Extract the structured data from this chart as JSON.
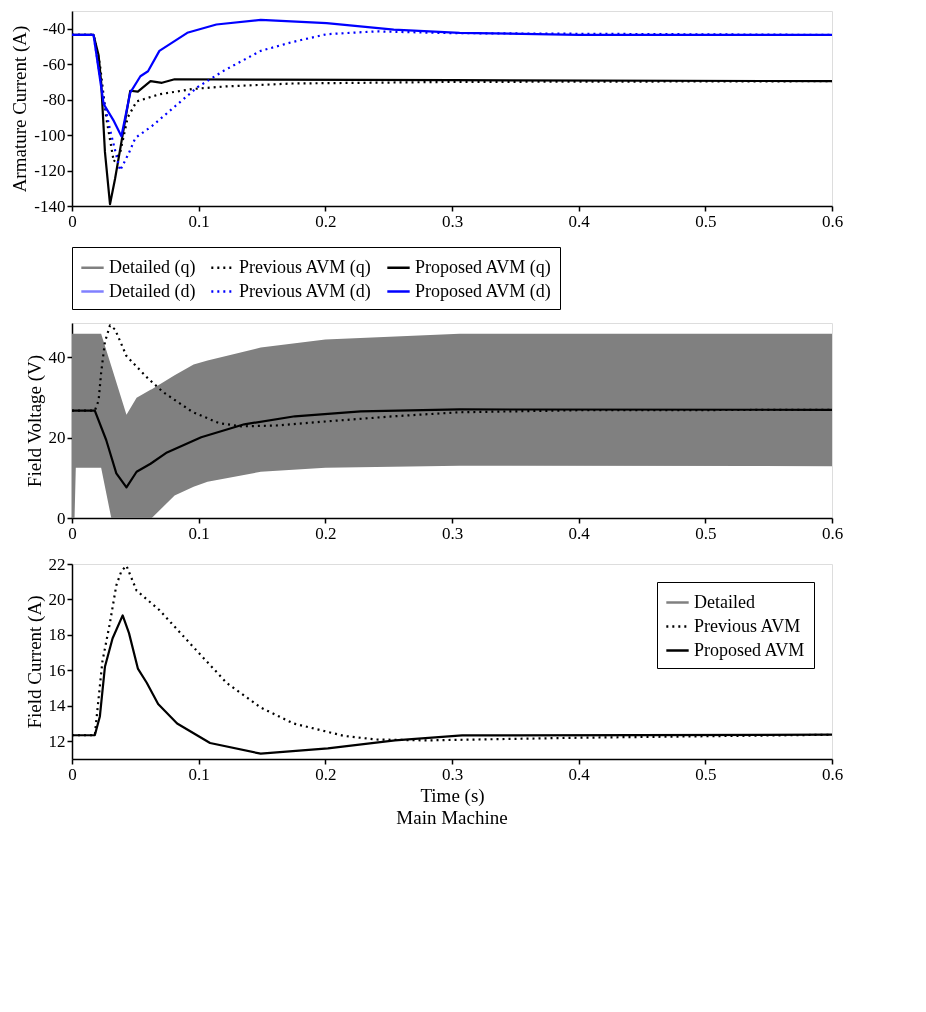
{
  "chart_data": [
    {
      "type": "line",
      "ylabel": "Armature Current (A)",
      "xlim": [
        0,
        0.6
      ],
      "ylim": [
        -140,
        -30
      ],
      "xticks": [
        0,
        0.1,
        0.2,
        0.3,
        0.4,
        0.5,
        0.6
      ],
      "yticks": [
        -140,
        -120,
        -100,
        -80,
        -60,
        -40
      ],
      "legend": "bottom",
      "grid": false,
      "series": [
        {
          "name": "Detailed (q)",
          "color": "#808080",
          "line_style": "solid"
        },
        {
          "name": "Previous AVM (q)",
          "color": "#000000",
          "line_style": "dotted",
          "x": [
            0,
            0.017,
            0.022,
            0.027,
            0.033,
            0.038,
            0.044,
            0.051,
            0.069,
            0.095,
            0.122,
            0.174,
            0.3,
            0.6
          ],
          "values": [
            -43.5,
            -43.5,
            -60,
            -90,
            -115,
            -110,
            -90,
            -81,
            -77,
            -74,
            -72.5,
            -70.9,
            -70,
            -69.6
          ]
        },
        {
          "name": "Proposed AVM (q)",
          "color": "#000000",
          "line_style": "solid",
          "x": [
            0,
            0.017,
            0.021,
            0.023,
            0.026,
            0.03,
            0.034,
            0.039,
            0.046,
            0.052,
            0.062,
            0.071,
            0.081,
            0.15,
            0.3,
            0.6
          ],
          "values": [
            -43.5,
            -43.5,
            -55,
            -70,
            -109.5,
            -139,
            -124.6,
            -104,
            -75,
            -75.5,
            -69.6,
            -70.5,
            -68.5,
            -68.7,
            -69,
            -69.6
          ]
        },
        {
          "name": "Detailed (d)",
          "color": "#8080ff",
          "line_style": "solid"
        },
        {
          "name": "Previous AVM (d)",
          "color": "#0000ff",
          "line_style": "dotted",
          "x": [
            0,
            0.017,
            0.025,
            0.03,
            0.038,
            0.045,
            0.05,
            0.063,
            0.081,
            0.099,
            0.12,
            0.149,
            0.174,
            0.201,
            0.24,
            0.3,
            0.6
          ],
          "values": [
            -43.5,
            -43.5,
            -80,
            -97,
            -120,
            -110,
            -101.6,
            -95,
            -84,
            -73,
            -63.6,
            -52.5,
            -47.5,
            -43.1,
            -41.5,
            -42.5,
            -43.5
          ]
        },
        {
          "name": "Proposed AVM (d)",
          "color": "#0000ff",
          "line_style": "solid",
          "x": [
            0,
            0.017,
            0.025,
            0.033,
            0.039,
            0.046,
            0.054,
            0.06,
            0.069,
            0.091,
            0.114,
            0.149,
            0.201,
            0.254,
            0.306,
            0.4,
            0.6
          ],
          "values": [
            -43.5,
            -43.5,
            -82.5,
            -92,
            -100.7,
            -76,
            -66.8,
            -64,
            -52.5,
            -42.3,
            -37.6,
            -35,
            -36.8,
            -40.5,
            -42.3,
            -43.5,
            -43.5
          ]
        }
      ]
    },
    {
      "type": "line",
      "ylabel": "Field Voltage (V)",
      "xlim": [
        0,
        0.6
      ],
      "ylim": [
        0,
        48.5
      ],
      "xticks": [
        0,
        0.1,
        0.2,
        0.3,
        0.4,
        0.5,
        0.6
      ],
      "yticks": [
        0,
        20,
        40
      ],
      "grid": false,
      "series": [
        {
          "type": "area",
          "color": "#808080",
          "x": [
            0,
            0.002,
            0.003,
            0.023,
            0.031,
            0.043,
            0.051,
            0.062,
            0.063,
            0.081,
            0.096,
            0.107,
            0.149,
            0.2,
            0.306,
            0.6
          ],
          "values": [
            null,
            null,
            null,
            null,
            null,
            null,
            null,
            null,
            null,
            null,
            null,
            null,
            null,
            null,
            null,
            null
          ],
          "upper": [
            45.8,
            45.8,
            45.8,
            45.8,
            37.8,
            25.7,
            29.9,
            31.9,
            32,
            35.5,
            38.2,
            39.2,
            42.4,
            44.4,
            45.8,
            45.8
          ],
          "lower": [
            0,
            0,
            12.5,
            12.5,
            0,
            0,
            0,
            0,
            0,
            5.6,
            7.8,
            9,
            11.5,
            12.5,
            13,
            12.9
          ]
        },
        {
          "color": "#000000",
          "line_style": "dotted",
          "x": [
            0,
            0.018,
            0.021,
            0.023,
            0.026,
            0.03,
            0.034,
            0.043,
            0.06,
            0.072,
            0.095,
            0.116,
            0.134,
            0.161,
            0.2,
            0.254,
            0.306,
            0.4,
            0.6
          ],
          "values": [
            26.7,
            26.7,
            29.2,
            36.1,
            43.8,
            47.9,
            46.9,
            40.3,
            34.7,
            31.3,
            26.4,
            23.6,
            22.8,
            23,
            24,
            25.3,
            26.3,
            26.8,
            26.9
          ]
        },
        {
          "color": "#000000",
          "line_style": "solid",
          "x": [
            0,
            0.018,
            0.027,
            0.035,
            0.043,
            0.051,
            0.062,
            0.075,
            0.102,
            0.136,
            0.176,
            0.228,
            0.306,
            0.6
          ],
          "values": [
            26.7,
            26.7,
            19.4,
            11.1,
            7.6,
            11.5,
            13.5,
            16.3,
            20.1,
            23.3,
            25.3,
            26.5,
            27,
            26.9
          ]
        }
      ]
    },
    {
      "type": "line",
      "xlabel": "Time (s)",
      "ylabel": "Field Current (A)",
      "xlim": [
        0,
        0.6
      ],
      "ylim": [
        11,
        22
      ],
      "xticks": [
        0,
        0.1,
        0.2,
        0.3,
        0.4,
        0.5,
        0.6
      ],
      "yticks": [
        12,
        14,
        16,
        18,
        20,
        22
      ],
      "legend": "top right",
      "grid": false,
      "annotations": [
        "Main Machine"
      ],
      "series": [
        {
          "name": "Detailed",
          "color": "#808080",
          "line_style": "solid"
        },
        {
          "name": "Previous AVM",
          "color": "#000000",
          "line_style": "dotted",
          "x": [
            0,
            0.018,
            0.024,
            0.03,
            0.035,
            0.039,
            0.043,
            0.051,
            0.069,
            0.096,
            0.122,
            0.149,
            0.175,
            0.215,
            0.24,
            0.28,
            0.4,
            0.6
          ],
          "values": [
            12.34,
            12.34,
            16.5,
            18.7,
            20.8,
            21.6,
            21.9,
            20.5,
            19.4,
            17.3,
            15.3,
            13.9,
            13,
            12.3,
            12.1,
            12.05,
            12.2,
            12.37
          ]
        },
        {
          "name": "Proposed AVM",
          "color": "#000000",
          "line_style": "solid",
          "x": [
            0,
            0.018,
            0.022,
            0.026,
            0.032,
            0.04,
            0.045,
            0.052,
            0.059,
            0.068,
            0.083,
            0.109,
            0.149,
            0.202,
            0.255,
            0.308,
            0.6
          ],
          "values": [
            12.34,
            12.34,
            13.4,
            16.2,
            17.8,
            19.1,
            18.1,
            16.1,
            15.3,
            14.1,
            13,
            11.9,
            11.3,
            11.6,
            12.05,
            12.33,
            12.37
          ]
        }
      ]
    }
  ]
}
